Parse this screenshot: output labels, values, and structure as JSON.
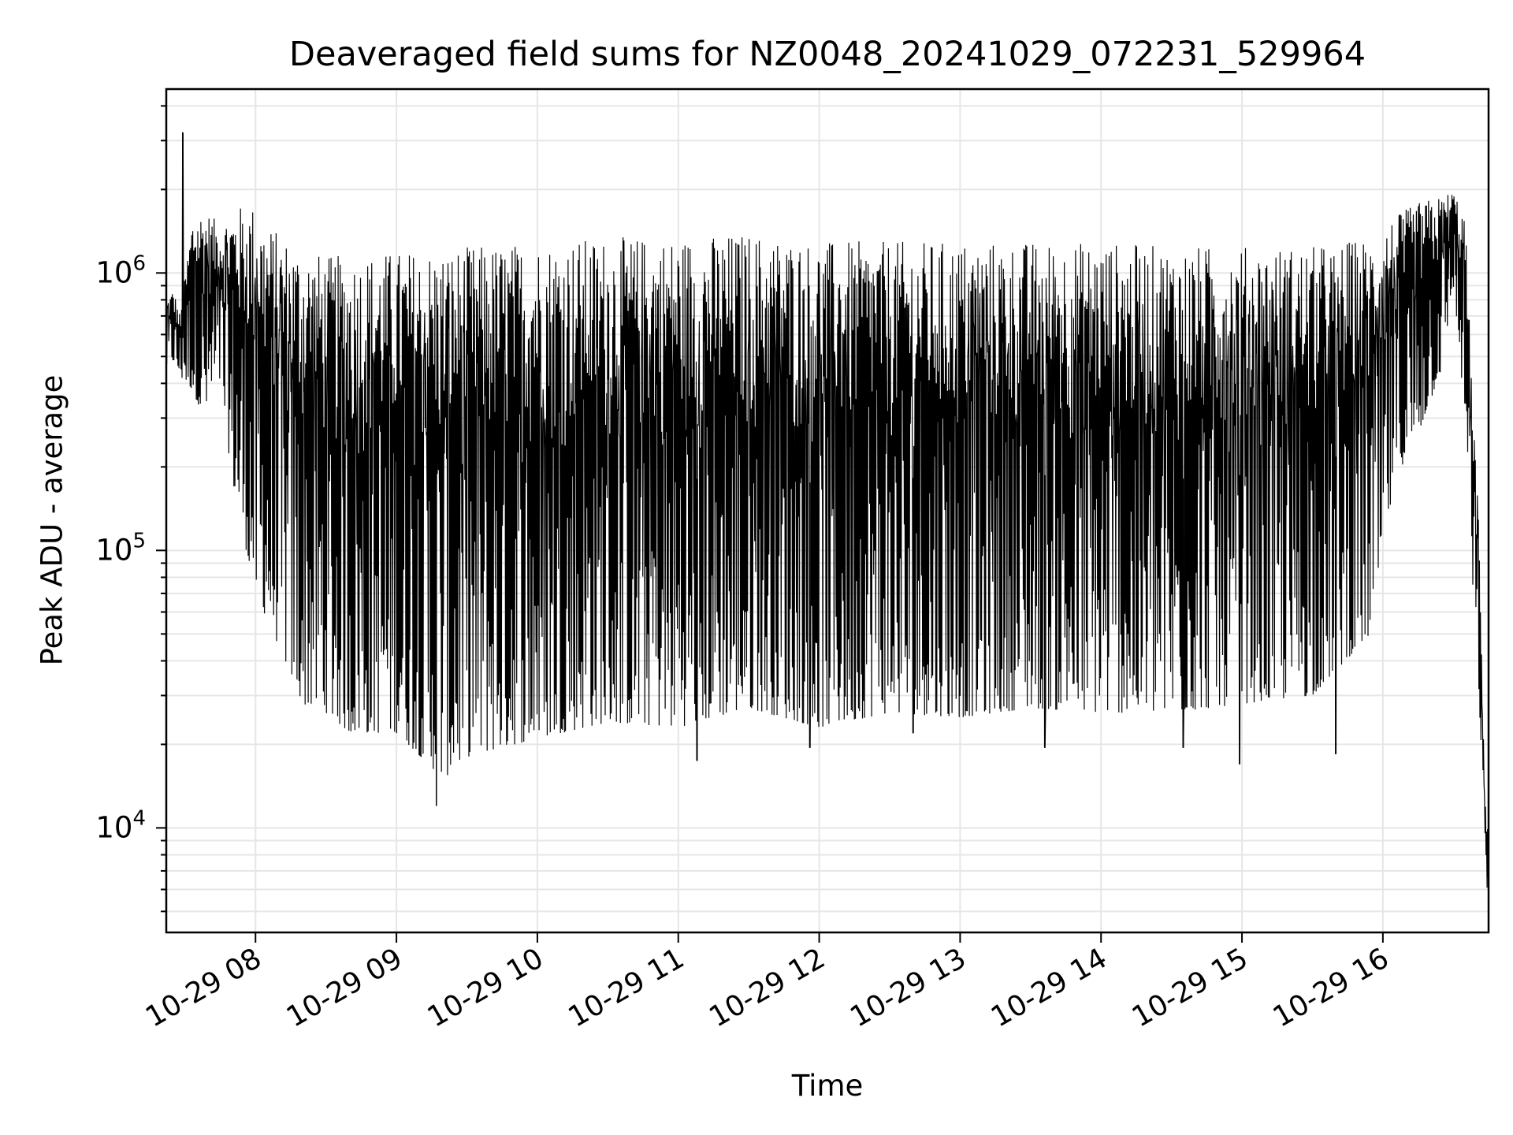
{
  "chart_data": {
    "type": "line",
    "title": "Deaveraged field sums for NZ0048_20241029_072231_529964",
    "xlabel": "Time",
    "ylabel": "Peak ADU - average",
    "yscale": "log",
    "ylim": [
      4200,
      4600000
    ],
    "xlim": [
      "2024-10-29 07:22",
      "2024-10-29 16:45"
    ],
    "x_ticks": [
      "10-29 08",
      "10-29 09",
      "10-29 10",
      "10-29 11",
      "10-29 12",
      "10-29 13",
      "10-29 14",
      "10-29 15",
      "10-29 16"
    ],
    "y_ticks": [
      {
        "base": "10",
        "exp": "4",
        "value": 10000
      },
      {
        "base": "10",
        "exp": "5",
        "value": 100000
      },
      {
        "base": "10",
        "exp": "6",
        "value": 1000000
      }
    ],
    "grid": true,
    "line_color": "#000000",
    "grid_color": "#e6e6e6",
    "series": [
      {
        "upper_envelope": {
          "x": [
            "07:22",
            "07:25",
            "07:28",
            "07:33",
            "07:38",
            "07:45",
            "07:50",
            "07:58",
            "08:05",
            "08:15",
            "08:30",
            "09:00",
            "09:30",
            "10:00",
            "10:30",
            "11:00",
            "11:30",
            "12:00",
            "12:30",
            "13:00",
            "13:30",
            "14:00",
            "14:30",
            "15:00",
            "15:30",
            "15:55",
            "16:05",
            "16:15",
            "16:25",
            "16:30",
            "16:35",
            "16:38",
            "16:41",
            "16:43",
            "16:45"
          ],
          "y": [
            800000,
            880000,
            700000,
            1600000,
            1700000,
            1500000,
            1700000,
            1800000,
            1500000,
            1300000,
            1150000,
            1200000,
            1250000,
            1300000,
            1350000,
            1350000,
            1400000,
            1300000,
            1300000,
            1300000,
            1300000,
            1300000,
            1250000,
            1250000,
            1250000,
            1350000,
            1600000,
            1800000,
            1900000,
            2000000,
            1600000,
            380000,
            120000,
            18000,
            9000
          ]
        },
        "lower_envelope": {
          "x": [
            "07:22",
            "07:25",
            "07:28",
            "07:33",
            "07:38",
            "07:45",
            "07:50",
            "07:55",
            "08:00",
            "08:10",
            "08:20",
            "08:30",
            "08:40",
            "09:00",
            "09:20",
            "09:30",
            "10:00",
            "10:30",
            "11:00",
            "11:30",
            "12:00",
            "12:30",
            "13:00",
            "13:30",
            "14:00",
            "14:30",
            "15:00",
            "15:30",
            "15:55",
            "16:05",
            "16:15",
            "16:25",
            "16:30",
            "16:35",
            "16:38",
            "16:41",
            "16:43",
            "16:45"
          ],
          "y": [
            450000,
            480000,
            420000,
            380000,
            300000,
            400000,
            180000,
            110000,
            70000,
            45000,
            28000,
            26000,
            22000,
            22000,
            15000,
            18000,
            21000,
            24000,
            23000,
            27000,
            23000,
            26000,
            25000,
            27000,
            26000,
            26000,
            28000,
            30000,
            50000,
            180000,
            260000,
            450000,
            900000,
            300000,
            80000,
            30000,
            9000,
            5000
          ]
        },
        "spikes": [
          {
            "x": "07:29",
            "y": 3200000
          },
          {
            "x": "09:17",
            "y": 12000
          },
          {
            "x": "11:08",
            "y": 17500
          },
          {
            "x": "11:56",
            "y": 19500
          },
          {
            "x": "12:40",
            "y": 22000
          },
          {
            "x": "13:36",
            "y": 19500
          },
          {
            "x": "14:35",
            "y": 19500
          },
          {
            "x": "14:59",
            "y": 17000
          },
          {
            "x": "15:40",
            "y": 18500
          }
        ]
      }
    ]
  }
}
